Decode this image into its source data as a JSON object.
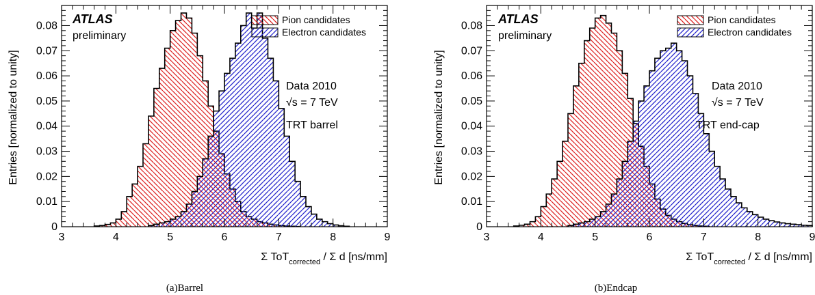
{
  "chart_data": [
    {
      "type": "histogram",
      "panel_label": "(a)",
      "caption": "Barrel",
      "experiment_label": "ATLAS",
      "status_label": "preliminary",
      "annotations": [
        "Data 2010",
        "√s = 7 TeV",
        "TRT barrel"
      ],
      "ylabel": "Entries  [normalized to unity]",
      "xlabel_parts": [
        "Σ ToT",
        "corrected",
        " /  Σ d  [ns/mm]"
      ],
      "xlim": [
        3,
        9
      ],
      "ylim": [
        0,
        0.088
      ],
      "xticks": [
        3,
        4,
        5,
        6,
        7,
        8,
        9
      ],
      "yticks": [
        0,
        0.01,
        0.02,
        0.03,
        0.04,
        0.05,
        0.06,
        0.07,
        0.08
      ],
      "yticklabels": [
        "0",
        "0.01",
        "0.02",
        "0.03",
        "0.04",
        "0.05",
        "0.06",
        "0.07",
        "0.08"
      ],
      "bin_width": 0.1,
      "legend_position": "top-right",
      "series": [
        {
          "name": "Pion candidates",
          "color": "#dd2222",
          "hatch": "diagonal-down",
          "x_start": 3.6,
          "values": [
            0.0003,
            0.0005,
            0.0009,
            0.0015,
            0.003,
            0.006,
            0.012,
            0.017,
            0.024,
            0.033,
            0.044,
            0.055,
            0.063,
            0.071,
            0.078,
            0.082,
            0.085,
            0.083,
            0.077,
            0.068,
            0.058,
            0.048,
            0.038,
            0.029,
            0.021,
            0.015,
            0.01,
            0.006,
            0.004,
            0.003,
            0.002,
            0.0015,
            0.001,
            0.0007,
            0.0005,
            0.0003,
            0.0002,
            0.0001
          ]
        },
        {
          "name": "Electron candidates",
          "color": "#2222cc",
          "hatch": "diagonal-up",
          "x_start": 4.6,
          "values": [
            0.0005,
            0.001,
            0.0015,
            0.002,
            0.003,
            0.004,
            0.006,
            0.009,
            0.014,
            0.02,
            0.027,
            0.036,
            0.046,
            0.054,
            0.061,
            0.067,
            0.073,
            0.08,
            0.085,
            0.079,
            0.085,
            0.075,
            0.067,
            0.058,
            0.047,
            0.036,
            0.026,
            0.018,
            0.012,
            0.008,
            0.005,
            0.003,
            0.002,
            0.0012,
            0.0007,
            0.0004,
            0.0002
          ]
        }
      ]
    },
    {
      "type": "histogram",
      "panel_label": "(b)",
      "caption": "Endcap",
      "experiment_label": "ATLAS",
      "status_label": "preliminary",
      "annotations": [
        "Data 2010",
        "√s = 7 TeV",
        "TRT end-cap"
      ],
      "ylabel": "Entries  [normalized to unity]",
      "xlabel_parts": [
        "Σ ToT",
        "corrected",
        " /  Σ d  [ns/mm]"
      ],
      "xlim": [
        3,
        9
      ],
      "ylim": [
        0,
        0.088
      ],
      "xticks": [
        3,
        4,
        5,
        6,
        7,
        8,
        9
      ],
      "yticks": [
        0,
        0.01,
        0.02,
        0.03,
        0.04,
        0.05,
        0.06,
        0.07,
        0.08
      ],
      "yticklabels": [
        "0",
        "0.01",
        "0.02",
        "0.03",
        "0.04",
        "0.05",
        "0.06",
        "0.07",
        "0.08"
      ],
      "bin_width": 0.1,
      "legend_position": "top-right",
      "series": [
        {
          "name": "Pion candidates",
          "color": "#dd2222",
          "hatch": "diagonal-down",
          "x_start": 3.5,
          "values": [
            0.0003,
            0.0006,
            0.001,
            0.002,
            0.004,
            0.008,
            0.013,
            0.019,
            0.026,
            0.034,
            0.045,
            0.056,
            0.065,
            0.074,
            0.079,
            0.083,
            0.084,
            0.081,
            0.077,
            0.07,
            0.061,
            0.051,
            0.041,
            0.032,
            0.024,
            0.017,
            0.011,
            0.007,
            0.0045,
            0.003,
            0.002,
            0.0013,
            0.0008,
            0.0005,
            0.0003,
            0.0002
          ]
        },
        {
          "name": "Electron candidates",
          "color": "#2222cc",
          "hatch": "diagonal-up",
          "x_start": 4.5,
          "values": [
            0.0005,
            0.001,
            0.0015,
            0.002,
            0.003,
            0.004,
            0.006,
            0.009,
            0.013,
            0.019,
            0.026,
            0.034,
            0.042,
            0.05,
            0.056,
            0.062,
            0.067,
            0.07,
            0.071,
            0.073,
            0.07,
            0.066,
            0.06,
            0.053,
            0.045,
            0.037,
            0.03,
            0.024,
            0.019,
            0.015,
            0.012,
            0.0095,
            0.0075,
            0.006,
            0.0048,
            0.0038,
            0.003,
            0.0024,
            0.0019,
            0.0015,
            0.0012,
            0.001,
            0.0008,
            0.0006,
            0.0005
          ]
        }
      ]
    }
  ]
}
